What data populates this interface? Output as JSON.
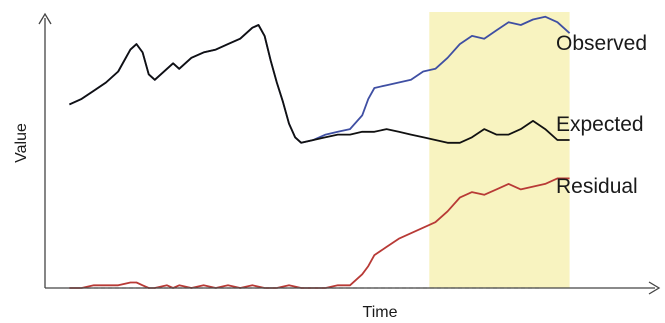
{
  "chart_data": {
    "type": "line",
    "xlabel": "Time",
    "ylabel": "Value",
    "x_range": [
      0,
      100
    ],
    "y_range": [
      0,
      100
    ],
    "grid": false,
    "highlight_band": {
      "x_start": 63,
      "x_end": 86,
      "color": "#f8f3c0"
    },
    "series": [
      {
        "name": "Observed",
        "color": "#3f4fa3",
        "points": [
          [
            4,
            67
          ],
          [
            6,
            69
          ],
          [
            8,
            72
          ],
          [
            10,
            75
          ],
          [
            12,
            79
          ],
          [
            14,
            87
          ],
          [
            15,
            89
          ],
          [
            16,
            86
          ],
          [
            17,
            78
          ],
          [
            18,
            76
          ],
          [
            20,
            80
          ],
          [
            21,
            82
          ],
          [
            22,
            80
          ],
          [
            24,
            84
          ],
          [
            26,
            86
          ],
          [
            28,
            87
          ],
          [
            30,
            89
          ],
          [
            32,
            91
          ],
          [
            34,
            95
          ],
          [
            35,
            96
          ],
          [
            36,
            92
          ],
          [
            37,
            83
          ],
          [
            38,
            75
          ],
          [
            39,
            68
          ],
          [
            40,
            60
          ],
          [
            41,
            55
          ],
          [
            42,
            53
          ],
          [
            44,
            54
          ],
          [
            46,
            56
          ],
          [
            48,
            57
          ],
          [
            50,
            58
          ],
          [
            52,
            63
          ],
          [
            53,
            69
          ],
          [
            54,
            73
          ],
          [
            56,
            74
          ],
          [
            58,
            75
          ],
          [
            60,
            76
          ],
          [
            62,
            79
          ],
          [
            64,
            80
          ],
          [
            66,
            84
          ],
          [
            68,
            89
          ],
          [
            70,
            92
          ],
          [
            72,
            91
          ],
          [
            74,
            94
          ],
          [
            76,
            97
          ],
          [
            78,
            96
          ],
          [
            80,
            98
          ],
          [
            82,
            99
          ],
          [
            84,
            97
          ],
          [
            86,
            93
          ]
        ]
      },
      {
        "name": "Expected",
        "color": "#111111",
        "points": [
          [
            4,
            67
          ],
          [
            6,
            69
          ],
          [
            8,
            72
          ],
          [
            10,
            75
          ],
          [
            12,
            79
          ],
          [
            14,
            87
          ],
          [
            15,
            89
          ],
          [
            16,
            86
          ],
          [
            17,
            78
          ],
          [
            18,
            76
          ],
          [
            20,
            80
          ],
          [
            21,
            82
          ],
          [
            22,
            80
          ],
          [
            24,
            84
          ],
          [
            26,
            86
          ],
          [
            28,
            87
          ],
          [
            30,
            89
          ],
          [
            32,
            91
          ],
          [
            34,
            95
          ],
          [
            35,
            96
          ],
          [
            36,
            92
          ],
          [
            37,
            83
          ],
          [
            38,
            75
          ],
          [
            39,
            68
          ],
          [
            40,
            60
          ],
          [
            41,
            55
          ],
          [
            42,
            53
          ],
          [
            44,
            54
          ],
          [
            46,
            55
          ],
          [
            48,
            56
          ],
          [
            50,
            56
          ],
          [
            52,
            57
          ],
          [
            54,
            57
          ],
          [
            56,
            58
          ],
          [
            58,
            57
          ],
          [
            60,
            56
          ],
          [
            62,
            55
          ],
          [
            64,
            54
          ],
          [
            66,
            53
          ],
          [
            68,
            53
          ],
          [
            70,
            55
          ],
          [
            72,
            58
          ],
          [
            74,
            56
          ],
          [
            76,
            56
          ],
          [
            78,
            58
          ],
          [
            80,
            61
          ],
          [
            82,
            58
          ],
          [
            84,
            54
          ],
          [
            86,
            54
          ]
        ]
      },
      {
        "name": "Residual",
        "color": "#b83a36",
        "points": [
          [
            4,
            0
          ],
          [
            6,
            0
          ],
          [
            8,
            1
          ],
          [
            10,
            1
          ],
          [
            12,
            1
          ],
          [
            14,
            2
          ],
          [
            15,
            2
          ],
          [
            16,
            1
          ],
          [
            17,
            0
          ],
          [
            18,
            0
          ],
          [
            20,
            1
          ],
          [
            21,
            0
          ],
          [
            22,
            1
          ],
          [
            24,
            0
          ],
          [
            26,
            1
          ],
          [
            28,
            0
          ],
          [
            30,
            1
          ],
          [
            32,
            0
          ],
          [
            34,
            1
          ],
          [
            36,
            0
          ],
          [
            38,
            0
          ],
          [
            40,
            1
          ],
          [
            42,
            0
          ],
          [
            44,
            0
          ],
          [
            46,
            0
          ],
          [
            48,
            1
          ],
          [
            50,
            1
          ],
          [
            52,
            5
          ],
          [
            53,
            8
          ],
          [
            54,
            12
          ],
          [
            56,
            15
          ],
          [
            58,
            18
          ],
          [
            60,
            20
          ],
          [
            62,
            22
          ],
          [
            64,
            24
          ],
          [
            66,
            28
          ],
          [
            68,
            33
          ],
          [
            70,
            35
          ],
          [
            72,
            34
          ],
          [
            74,
            36
          ],
          [
            76,
            38
          ],
          [
            78,
            36
          ],
          [
            80,
            37
          ],
          [
            82,
            38
          ],
          [
            84,
            40
          ],
          [
            86,
            40
          ]
        ]
      }
    ]
  }
}
